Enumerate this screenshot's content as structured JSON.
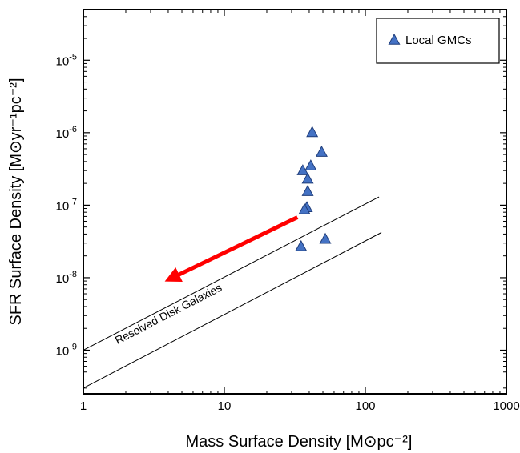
{
  "chart_data": {
    "type": "scatter",
    "x_scale": "log",
    "y_scale": "log",
    "xlim": [
      1,
      1000
    ],
    "ylim": [
      2.5e-10,
      5e-05
    ],
    "xlabel": "Mass Surface Density [M⊙pc⁻²]",
    "ylabel": "SFR Surface Density [M⊙yr⁻¹pc⁻²]",
    "grid": false,
    "legend_position": "top-right",
    "x_ticks": [
      {
        "value": 1,
        "label": "1"
      },
      {
        "value": 10,
        "label": "10"
      },
      {
        "value": 100,
        "label": "100"
      },
      {
        "value": 1000,
        "label": "1000"
      }
    ],
    "y_ticks": [
      {
        "value": 1e-09,
        "base": "10",
        "exp": "-9"
      },
      {
        "value": 1e-08,
        "base": "10",
        "exp": "-8"
      },
      {
        "value": 1e-07,
        "base": "10",
        "exp": "-7"
      },
      {
        "value": 1e-06,
        "base": "10",
        "exp": "-6"
      },
      {
        "value": 1e-05,
        "base": "10",
        "exp": "-5"
      }
    ],
    "series": [
      {
        "name": "Local GMCs",
        "marker": "triangle",
        "color": "#4472c4",
        "edge_color": "#1f3d7a",
        "points": [
          {
            "x": 42,
            "y": 1.01e-06
          },
          {
            "x": 49,
            "y": 5.4e-07
          },
          {
            "x": 41,
            "y": 3.5e-07
          },
          {
            "x": 36,
            "y": 3e-07
          },
          {
            "x": 39,
            "y": 2.3e-07
          },
          {
            "x": 39,
            "y": 1.55e-07
          },
          {
            "x": 38.5,
            "y": 9.3e-08
          },
          {
            "x": 37,
            "y": 8.7e-08
          },
          {
            "x": 35,
            "y": 2.7e-08
          },
          {
            "x": 52,
            "y": 3.4e-08
          }
        ]
      }
    ],
    "lines": [
      {
        "from": {
          "x": 1,
          "y": 1e-09
        },
        "to": {
          "x": 125,
          "y": 1.3e-07
        },
        "color": "#000000"
      },
      {
        "from": {
          "x": 1,
          "y": 3e-10
        },
        "to": {
          "x": 130,
          "y": 4.2e-08
        },
        "color": "#000000"
      }
    ],
    "arrow": {
      "from": {
        "x": 33,
        "y": 6.8e-08
      },
      "to": {
        "x": 4.2,
        "y": 9.8e-09
      },
      "color": "#ff0000"
    },
    "annotations": [
      {
        "text": "Resolved Disk Galaxies",
        "x": 1.75,
        "y": 1.2e-09
      }
    ]
  },
  "legend": {
    "label": "Local GMCs"
  }
}
